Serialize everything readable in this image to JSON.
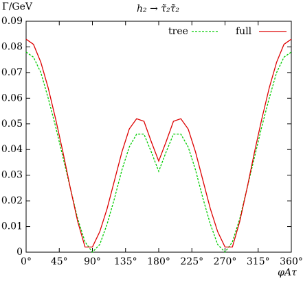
{
  "chart_data": {
    "type": "line",
    "title": "h₂ → τ̃₂τ̃₂",
    "y_label": "Γ/GeV",
    "x_label": "φAτ",
    "x": [
      0,
      10,
      20,
      30,
      40,
      50,
      60,
      70,
      80,
      90,
      100,
      110,
      120,
      130,
      140,
      150,
      160,
      170,
      180,
      190,
      200,
      210,
      220,
      230,
      240,
      250,
      260,
      270,
      280,
      290,
      300,
      310,
      320,
      330,
      340,
      350,
      360
    ],
    "series": [
      {
        "name": "tree",
        "color": "#00cc00",
        "dash": true,
        "values": [
          0.078,
          0.076,
          0.07,
          0.06,
          0.049,
          0.037,
          0.025,
          0.013,
          0.004,
          0.0,
          0.003,
          0.011,
          0.021,
          0.032,
          0.041,
          0.046,
          0.046,
          0.039,
          0.0315,
          0.039,
          0.046,
          0.046,
          0.041,
          0.032,
          0.021,
          0.011,
          0.003,
          0.0,
          0.004,
          0.013,
          0.025,
          0.037,
          0.049,
          0.06,
          0.07,
          0.076,
          0.078
        ]
      },
      {
        "name": "full",
        "color": "#dd0000",
        "dash": false,
        "values": [
          0.083,
          0.081,
          0.074,
          0.064,
          0.052,
          0.039,
          0.025,
          0.012,
          0.002,
          0.002,
          0.008,
          0.017,
          0.028,
          0.039,
          0.048,
          0.052,
          0.051,
          0.043,
          0.0355,
          0.043,
          0.051,
          0.052,
          0.048,
          0.039,
          0.028,
          0.017,
          0.008,
          0.002,
          0.002,
          0.012,
          0.025,
          0.039,
          0.052,
          0.064,
          0.074,
          0.081,
          0.083
        ]
      }
    ],
    "xlim": [
      0,
      360
    ],
    "xticks": [
      {
        "value": 0,
        "label": "0°"
      },
      {
        "value": 45,
        "label": "45°"
      },
      {
        "value": 90,
        "label": "90°"
      },
      {
        "value": 135,
        "label": "135°"
      },
      {
        "value": 180,
        "label": "180°"
      },
      {
        "value": 225,
        "label": "225°"
      },
      {
        "value": 270,
        "label": "270°"
      },
      {
        "value": 315,
        "label": "315°"
      },
      {
        "value": 360,
        "label": "360°"
      }
    ],
    "ylim": [
      0,
      0.09
    ],
    "yticks": [
      0,
      0.01,
      0.02,
      0.03,
      0.04,
      0.05,
      0.06,
      0.07,
      0.08,
      0.09
    ],
    "grid": false,
    "legend": "top-right"
  }
}
